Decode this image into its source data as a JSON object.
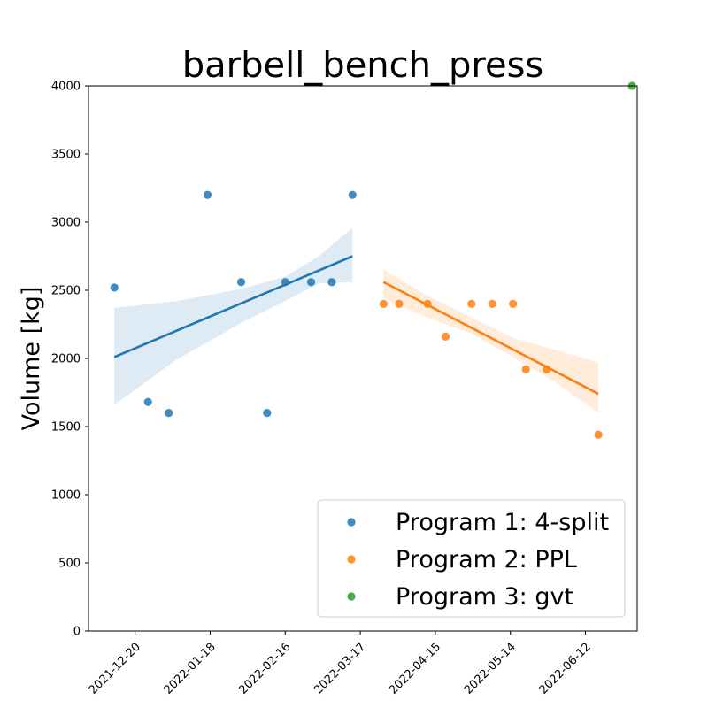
{
  "chart_data": {
    "type": "scatter",
    "title": "barbell_bench_press",
    "xlabel": "",
    "ylabel": "Volume [kg]",
    "ylim": [
      0,
      4000
    ],
    "yticks": [
      0,
      500,
      1000,
      1500,
      2000,
      2500,
      3000,
      3500,
      4000
    ],
    "xlim": [
      "2021-12-02",
      "2022-07-02"
    ],
    "xticks": [
      "2021-12-20",
      "2022-01-18",
      "2022-02-16",
      "2022-03-17",
      "2022-04-15",
      "2022-05-14",
      "2022-06-12"
    ],
    "grid": false,
    "legend_position": "bottom-right",
    "series": [
      {
        "name": "Program 1: 4-split",
        "color": "#1f77b4",
        "points": [
          {
            "x": "2021-12-12",
            "y": 2520
          },
          {
            "x": "2021-12-25",
            "y": 1680
          },
          {
            "x": "2022-01-02",
            "y": 1600
          },
          {
            "x": "2022-01-17",
            "y": 3200
          },
          {
            "x": "2022-01-30",
            "y": 2560
          },
          {
            "x": "2022-02-09",
            "y": 1600
          },
          {
            "x": "2022-02-16",
            "y": 2560
          },
          {
            "x": "2022-02-26",
            "y": 2560
          },
          {
            "x": "2022-03-06",
            "y": 2560
          },
          {
            "x": "2022-03-14",
            "y": 3200
          }
        ],
        "trend": {
          "start": [
            "2021-12-12",
            2010
          ],
          "end": [
            "2022-03-14",
            2750
          ]
        },
        "ci_upper": [
          [
            "2021-12-12",
            2370
          ],
          [
            "2022-01-05",
            2420
          ],
          [
            "2022-01-30",
            2510
          ],
          [
            "2022-02-16",
            2600
          ],
          [
            "2022-03-01",
            2750
          ],
          [
            "2022-03-14",
            2960
          ]
        ],
        "ci_lower": [
          [
            "2021-12-12",
            1660
          ],
          [
            "2022-01-05",
            1990
          ],
          [
            "2022-01-30",
            2260
          ],
          [
            "2022-02-16",
            2420
          ],
          [
            "2022-03-01",
            2550
          ],
          [
            "2022-03-14",
            2560
          ]
        ]
      },
      {
        "name": "Program 2: PPL",
        "color": "#ff7f0e",
        "points": [
          {
            "x": "2022-03-26",
            "y": 2400
          },
          {
            "x": "2022-04-01",
            "y": 2400
          },
          {
            "x": "2022-04-12",
            "y": 2400
          },
          {
            "x": "2022-04-19",
            "y": 2160
          },
          {
            "x": "2022-04-29",
            "y": 2400
          },
          {
            "x": "2022-05-07",
            "y": 2400
          },
          {
            "x": "2022-05-15",
            "y": 2400
          },
          {
            "x": "2022-05-20",
            "y": 1920
          },
          {
            "x": "2022-05-28",
            "y": 1920
          },
          {
            "x": "2022-06-17",
            "y": 1440
          }
        ],
        "trend": {
          "start": [
            "2022-03-26",
            2560
          ],
          "end": [
            "2022-06-17",
            1740
          ]
        },
        "ci_upper": [
          [
            "2022-03-26",
            2650
          ],
          [
            "2022-04-12",
            2460
          ],
          [
            "2022-04-29",
            2300
          ],
          [
            "2022-05-15",
            2150
          ],
          [
            "2022-06-01",
            2060
          ],
          [
            "2022-06-17",
            1970
          ]
        ],
        "ci_lower": [
          [
            "2022-03-26",
            2440
          ],
          [
            "2022-04-12",
            2300
          ],
          [
            "2022-04-29",
            2180
          ],
          [
            "2022-05-15",
            2010
          ],
          [
            "2022-06-01",
            1820
          ],
          [
            "2022-06-17",
            1600
          ]
        ]
      },
      {
        "name": "Program 3: gvt",
        "color": "#2ca02c",
        "points": [
          {
            "x": "2022-06-30",
            "y": 4000
          }
        ]
      }
    ]
  }
}
